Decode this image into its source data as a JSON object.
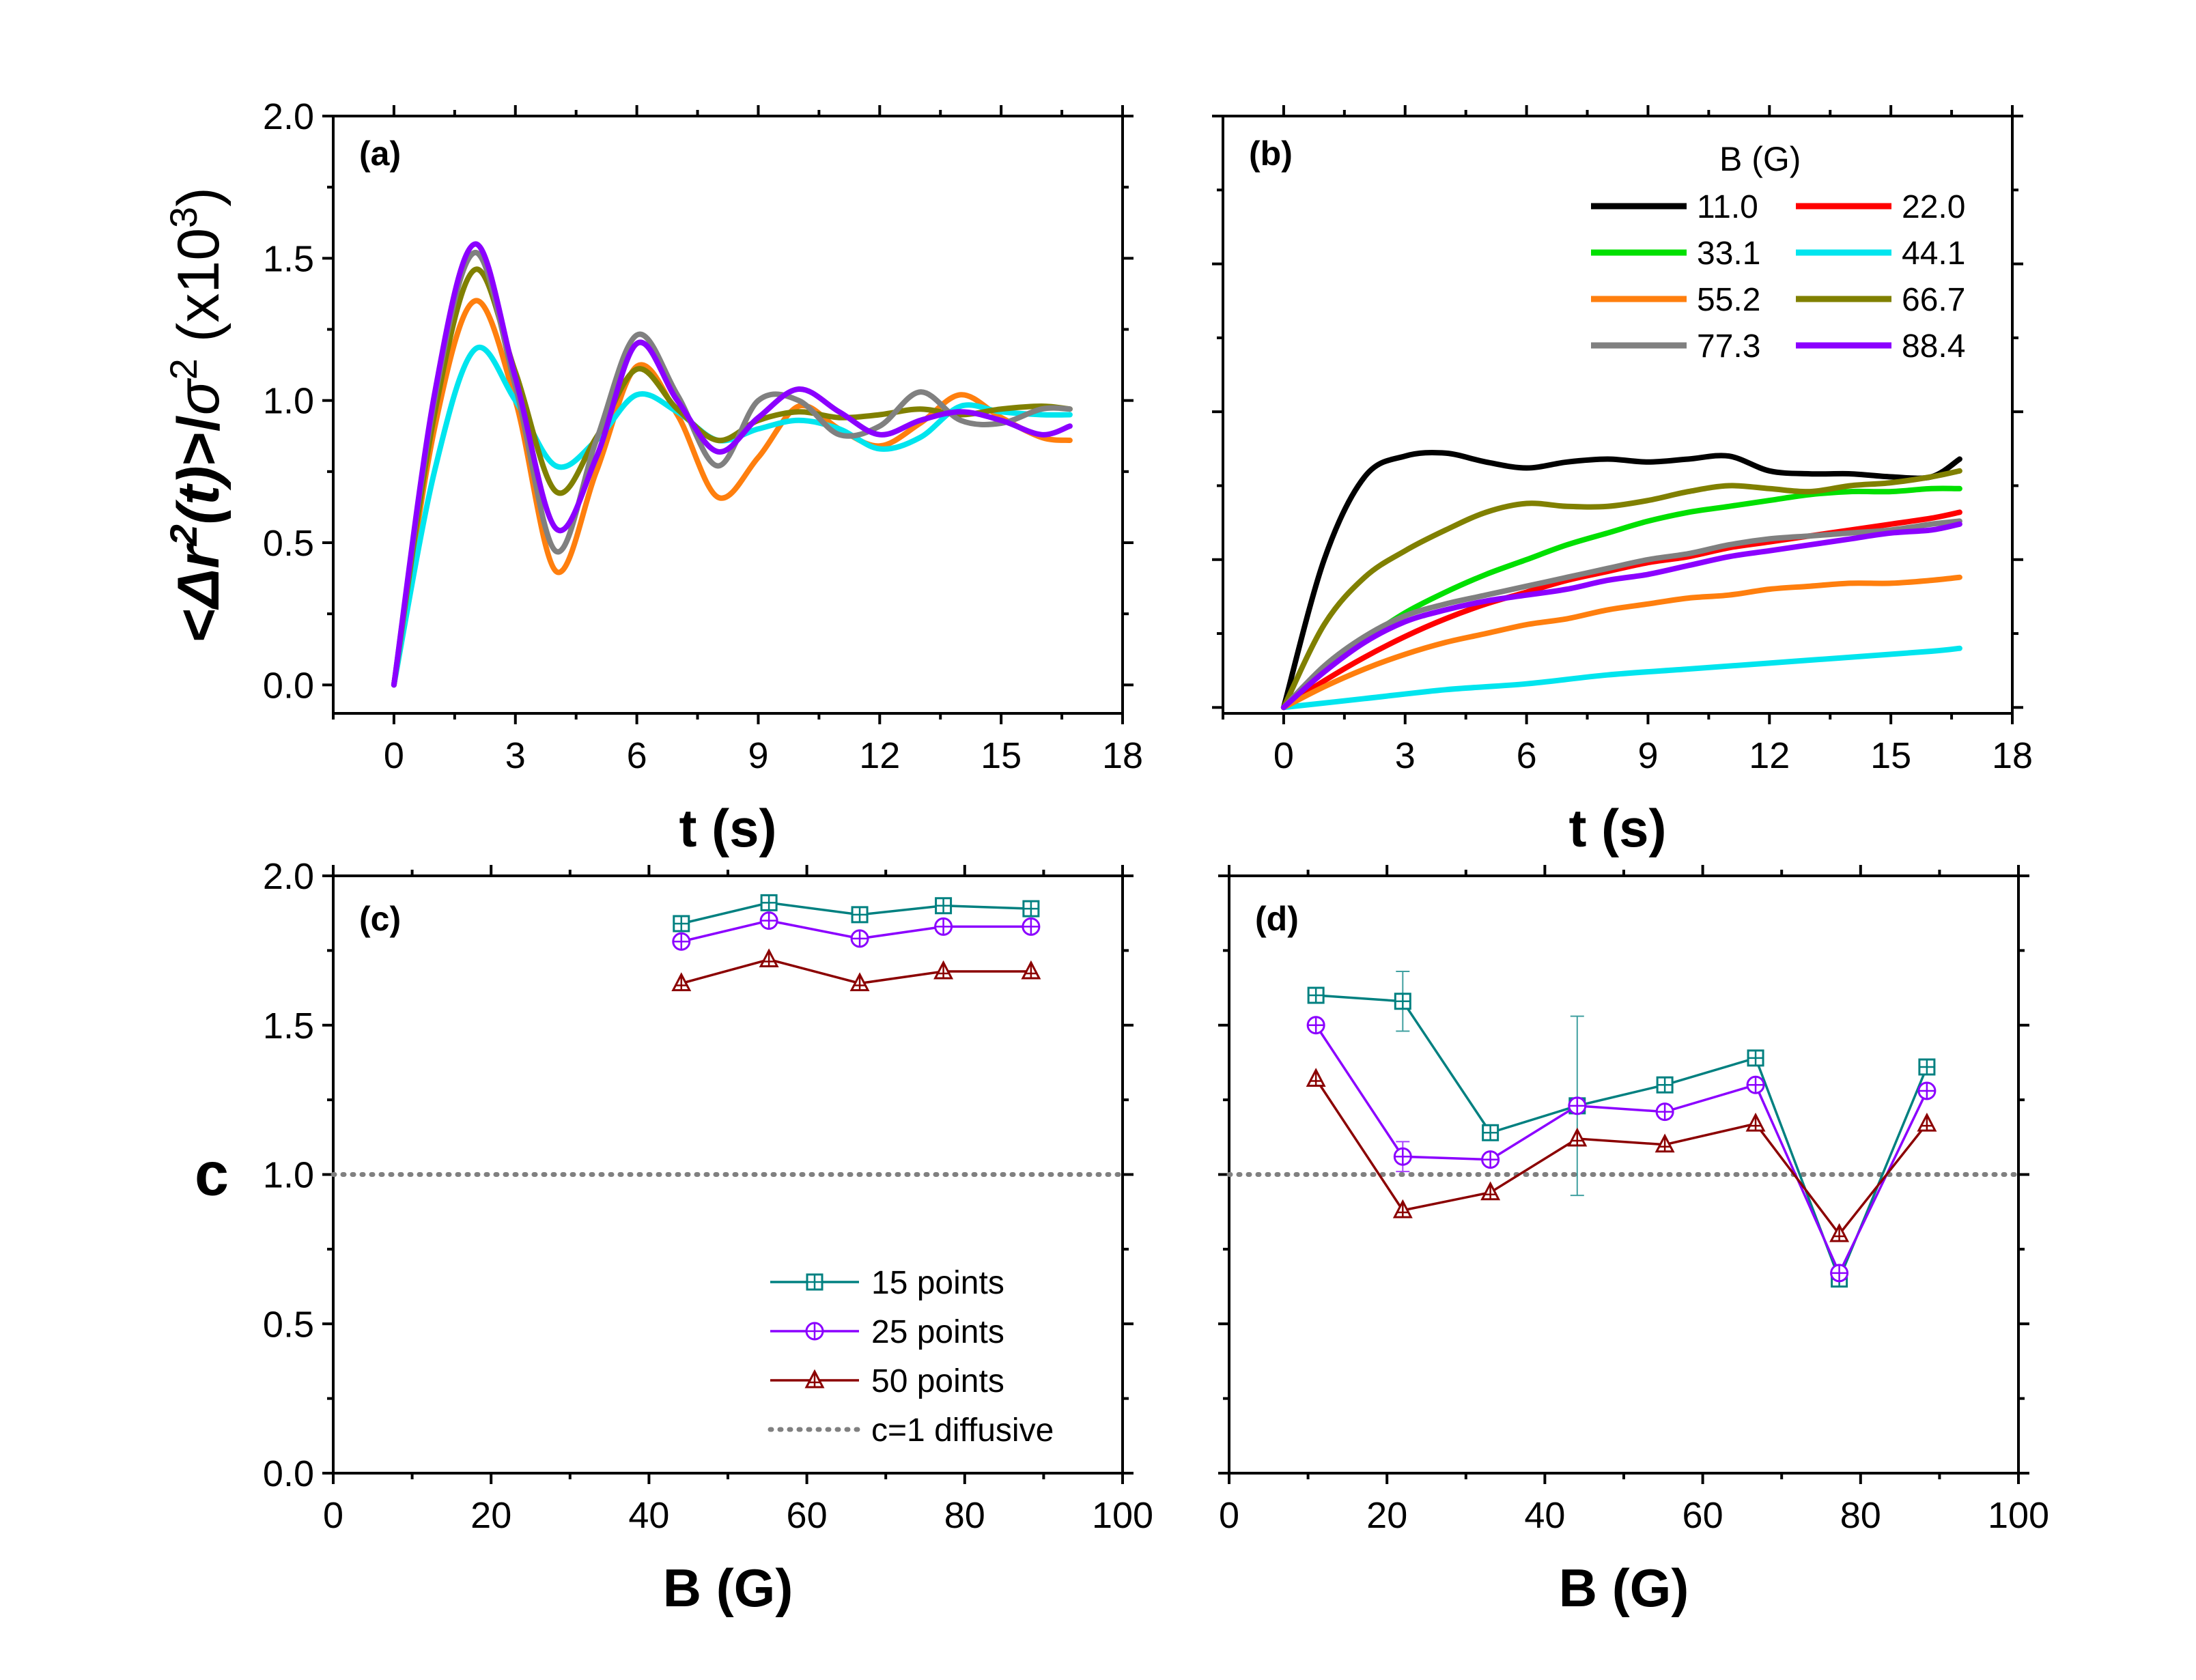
{
  "chart_data": [
    {
      "panel": "(a)",
      "type": "line",
      "xlabel": "t (s)",
      "ylabel": "<Δr²(t)>/σ² (x10³)",
      "xlim": [
        -1.5,
        18
      ],
      "ylim": [
        -0.1,
        2.0
      ],
      "xticks": [
        0,
        3,
        6,
        9,
        12,
        15,
        18
      ],
      "yticks": [
        0.0,
        0.5,
        1.0,
        1.5,
        2.0
      ],
      "series": [
        {
          "name": "55.2",
          "color": "#ff7f0e",
          "x": [
            0,
            1,
            2,
            3,
            4,
            5,
            6,
            7,
            8,
            9,
            10,
            11,
            12,
            13,
            14,
            15,
            16,
            16.7
          ],
          "y": [
            0,
            0.9,
            1.35,
            1.0,
            0.4,
            0.75,
            1.12,
            0.95,
            0.66,
            0.8,
            0.98,
            0.9,
            0.84,
            0.92,
            1.02,
            0.94,
            0.87,
            0.86
          ]
        },
        {
          "name": "44.1",
          "color": "#00e5ee",
          "x": [
            0,
            1,
            2,
            3,
            4,
            5,
            6,
            7,
            8,
            9,
            10,
            11,
            12,
            13,
            14,
            15,
            16,
            16.7
          ],
          "y": [
            0,
            0.75,
            1.18,
            1.0,
            0.77,
            0.86,
            1.02,
            0.96,
            0.86,
            0.9,
            0.93,
            0.9,
            0.83,
            0.87,
            0.98,
            0.96,
            0.95,
            0.95
          ]
        },
        {
          "name": "66.7",
          "color": "#808000",
          "x": [
            0,
            1,
            2,
            3,
            4,
            5,
            6,
            7,
            8,
            9,
            10,
            11,
            12,
            13,
            14,
            15,
            16,
            16.7
          ],
          "y": [
            0,
            0.95,
            1.46,
            1.1,
            0.68,
            0.87,
            1.11,
            0.97,
            0.86,
            0.93,
            0.96,
            0.94,
            0.95,
            0.97,
            0.95,
            0.97,
            0.98,
            0.97
          ]
        },
        {
          "name": "77.3",
          "color": "#808080",
          "x": [
            0,
            1,
            2,
            3,
            4,
            5,
            6,
            7,
            8,
            9,
            10,
            11,
            12,
            13,
            14,
            15,
            16,
            16.7
          ],
          "y": [
            0,
            1.0,
            1.52,
            1.05,
            0.47,
            0.86,
            1.23,
            1.02,
            0.77,
            1.0,
            1.0,
            0.88,
            0.91,
            1.03,
            0.93,
            0.92,
            0.97,
            0.97
          ]
        },
        {
          "name": "88.4",
          "color": "#8b00ff",
          "x": [
            0,
            1,
            2,
            3,
            4,
            5,
            6,
            7,
            8,
            9,
            10,
            11,
            12,
            13,
            14,
            15,
            16,
            16.7
          ],
          "y": [
            0,
            1.02,
            1.55,
            1.08,
            0.55,
            0.8,
            1.2,
            1.0,
            0.82,
            0.94,
            1.04,
            0.96,
            0.88,
            0.93,
            0.96,
            0.93,
            0.88,
            0.91
          ]
        }
      ]
    },
    {
      "panel": "(b)",
      "type": "line",
      "xlabel": "t (s)",
      "xlim": [
        -1.5,
        18
      ],
      "ylim": [
        -0.02,
        2.0
      ],
      "xticks": [
        0,
        3,
        6,
        9,
        12,
        15,
        18
      ],
      "legend": {
        "title": "B (G)",
        "position": "top-right",
        "entries": [
          {
            "label": "11.0",
            "color": "#000000"
          },
          {
            "label": "22.0",
            "color": "#ff0000"
          },
          {
            "label": "33.1",
            "color": "#00e000"
          },
          {
            "label": "44.1",
            "color": "#00e5ee"
          },
          {
            "label": "55.2",
            "color": "#ff7f0e"
          },
          {
            "label": "66.7",
            "color": "#808000"
          },
          {
            "label": "77.3",
            "color": "#808080"
          },
          {
            "label": "88.4",
            "color": "#8b00ff"
          }
        ]
      },
      "series": [
        {
          "name": "11.0",
          "color": "#000000",
          "x": [
            0,
            1,
            2,
            3,
            4,
            5,
            6,
            7,
            8,
            9,
            10,
            11,
            12,
            13,
            14,
            15,
            16,
            16.7
          ],
          "y": [
            0,
            0.5,
            0.78,
            0.85,
            0.86,
            0.83,
            0.81,
            0.83,
            0.84,
            0.83,
            0.84,
            0.85,
            0.8,
            0.79,
            0.79,
            0.78,
            0.78,
            0.84
          ]
        },
        {
          "name": "22.0",
          "color": "#ff0000",
          "x": [
            0,
            1,
            2,
            3,
            4,
            5,
            6,
            7,
            8,
            9,
            10,
            11,
            12,
            13,
            14,
            15,
            16,
            16.7
          ],
          "y": [
            0,
            0.09,
            0.17,
            0.24,
            0.3,
            0.35,
            0.39,
            0.43,
            0.46,
            0.49,
            0.51,
            0.54,
            0.56,
            0.58,
            0.6,
            0.62,
            0.64,
            0.66
          ]
        },
        {
          "name": "33.1",
          "color": "#00e000",
          "x": [
            0,
            1,
            2,
            3,
            4,
            5,
            6,
            7,
            8,
            9,
            10,
            11,
            12,
            13,
            14,
            15,
            16,
            16.7
          ],
          "y": [
            0,
            0.13,
            0.23,
            0.32,
            0.39,
            0.45,
            0.5,
            0.55,
            0.59,
            0.63,
            0.66,
            0.68,
            0.7,
            0.72,
            0.73,
            0.73,
            0.74,
            0.74
          ]
        },
        {
          "name": "44.1",
          "color": "#00e5ee",
          "x": [
            0,
            2,
            4,
            6,
            8,
            10,
            12,
            14,
            16,
            16.7
          ],
          "y": [
            0,
            0.03,
            0.06,
            0.08,
            0.11,
            0.13,
            0.15,
            0.17,
            0.19,
            0.2
          ]
        },
        {
          "name": "55.2",
          "color": "#ff7f0e",
          "x": [
            0,
            1,
            2,
            3,
            4,
            5,
            6,
            7,
            8,
            9,
            10,
            11,
            12,
            13,
            14,
            15,
            16,
            16.7
          ],
          "y": [
            0,
            0.07,
            0.13,
            0.18,
            0.22,
            0.25,
            0.28,
            0.3,
            0.33,
            0.35,
            0.37,
            0.38,
            0.4,
            0.41,
            0.42,
            0.42,
            0.43,
            0.44
          ]
        },
        {
          "name": "66.7",
          "color": "#808000",
          "x": [
            0,
            1,
            2,
            3,
            4,
            5,
            6,
            7,
            8,
            9,
            10,
            11,
            12,
            13,
            14,
            15,
            16,
            16.7
          ],
          "y": [
            0,
            0.28,
            0.44,
            0.53,
            0.6,
            0.66,
            0.69,
            0.68,
            0.68,
            0.7,
            0.73,
            0.75,
            0.74,
            0.73,
            0.75,
            0.76,
            0.78,
            0.8
          ]
        },
        {
          "name": "77.3",
          "color": "#808080",
          "x": [
            0,
            1,
            2,
            3,
            4,
            5,
            6,
            7,
            8,
            9,
            10,
            11,
            12,
            13,
            14,
            15,
            16,
            16.7
          ],
          "y": [
            0,
            0.14,
            0.24,
            0.31,
            0.35,
            0.38,
            0.41,
            0.44,
            0.47,
            0.5,
            0.52,
            0.55,
            0.57,
            0.58,
            0.59,
            0.6,
            0.62,
            0.63
          ]
        },
        {
          "name": "88.4",
          "color": "#8b00ff",
          "x": [
            0,
            1,
            2,
            3,
            4,
            5,
            6,
            7,
            8,
            9,
            10,
            11,
            12,
            13,
            14,
            15,
            16,
            16.7
          ],
          "y": [
            0,
            0.12,
            0.22,
            0.29,
            0.33,
            0.36,
            0.38,
            0.4,
            0.43,
            0.45,
            0.48,
            0.51,
            0.53,
            0.55,
            0.57,
            0.59,
            0.6,
            0.62
          ]
        }
      ]
    },
    {
      "panel": "(c)",
      "type": "line",
      "xlabel": "B (G)",
      "ylabel": "c",
      "xlim": [
        0,
        100
      ],
      "ylim": [
        0.0,
        2.0
      ],
      "xticks": [
        0,
        20,
        40,
        60,
        80,
        100
      ],
      "yticks": [
        0.0,
        0.5,
        1.0,
        1.5,
        2.0
      ],
      "diffusive_line": 1.0,
      "legend": {
        "position": "bottom-right",
        "entries": [
          {
            "label": "15 points",
            "color": "#008080",
            "marker": "square"
          },
          {
            "label": "25 points",
            "color": "#8b00ff",
            "marker": "circle"
          },
          {
            "label": "50 points",
            "color": "#8b0000",
            "marker": "triangle"
          },
          {
            "label": "c=1 diffusive",
            "color": "#808080",
            "marker": "dotted"
          }
        ]
      },
      "series": [
        {
          "name": "15 points",
          "color": "#008080",
          "marker": "square",
          "x": [
            44.1,
            55.2,
            66.7,
            77.3,
            88.4
          ],
          "y": [
            1.84,
            1.91,
            1.87,
            1.9,
            1.89
          ]
        },
        {
          "name": "25 points",
          "color": "#8b00ff",
          "marker": "circle",
          "x": [
            44.1,
            55.2,
            66.7,
            77.3,
            88.4
          ],
          "y": [
            1.78,
            1.85,
            1.79,
            1.83,
            1.83
          ]
        },
        {
          "name": "50 points",
          "color": "#8b0000",
          "marker": "triangle",
          "x": [
            44.1,
            55.2,
            66.7,
            77.3,
            88.4
          ],
          "y": [
            1.64,
            1.72,
            1.64,
            1.68,
            1.68
          ]
        }
      ]
    },
    {
      "panel": "(d)",
      "type": "line",
      "xlabel": "B (G)",
      "xlim": [
        0,
        100
      ],
      "ylim": [
        0.0,
        2.0
      ],
      "xticks": [
        0,
        20,
        40,
        60,
        80,
        100
      ],
      "diffusive_line": 1.0,
      "series": [
        {
          "name": "15 points",
          "color": "#008080",
          "marker": "square",
          "x": [
            11.0,
            22.0,
            33.1,
            44.1,
            55.2,
            66.7,
            77.3,
            88.4
          ],
          "y": [
            1.6,
            1.58,
            1.14,
            1.23,
            1.3,
            1.39,
            0.65,
            1.36
          ],
          "err": [
            0,
            0.1,
            0,
            0.3,
            0,
            0,
            0,
            0
          ]
        },
        {
          "name": "25 points",
          "color": "#8b00ff",
          "marker": "circle",
          "x": [
            11.0,
            22.0,
            33.1,
            44.1,
            55.2,
            66.7,
            77.3,
            88.4
          ],
          "y": [
            1.5,
            1.06,
            1.05,
            1.23,
            1.21,
            1.3,
            0.67,
            1.28
          ],
          "err": [
            0,
            0.05,
            0,
            0,
            0,
            0,
            0,
            0
          ]
        },
        {
          "name": "50 points",
          "color": "#8b0000",
          "marker": "triangle",
          "x": [
            11.0,
            22.0,
            33.1,
            44.1,
            55.2,
            66.7,
            77.3,
            88.4
          ],
          "y": [
            1.32,
            0.88,
            0.94,
            1.12,
            1.1,
            1.17,
            0.8,
            1.17
          ],
          "err": [
            0,
            0,
            0,
            0,
            0,
            0,
            0,
            0
          ]
        }
      ]
    }
  ]
}
